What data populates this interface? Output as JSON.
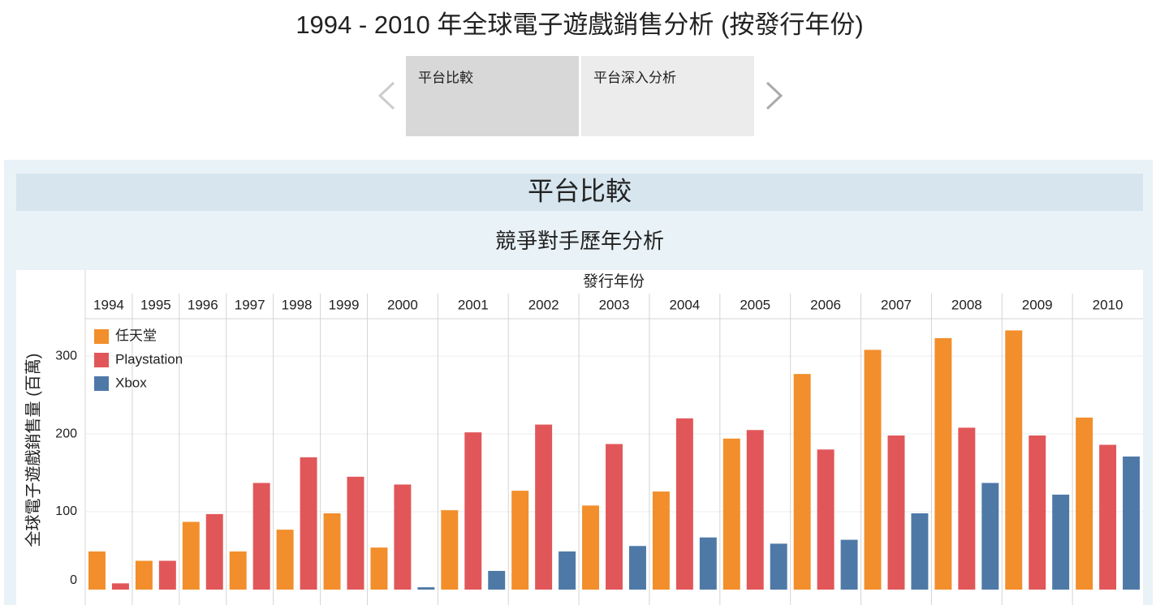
{
  "header": {
    "title": "1994 - 2010 年全球電子遊戲銷售分析 (按發行年份)",
    "tabs": [
      "平台比較",
      "平台深入分析"
    ]
  },
  "section": {
    "title": "平台比較"
  },
  "chart_data": {
    "type": "bar",
    "title": "競爭對手歷年分析",
    "x_label": "發行年份",
    "y_label": "全球電子遊戲銷售量 (百萬)",
    "categories": [
      "1994",
      "1995",
      "1996",
      "1997",
      "1998",
      "1999",
      "2000",
      "2001",
      "2002",
      "2003",
      "2004",
      "2005",
      "2006",
      "2007",
      "2008",
      "2009",
      "2010"
    ],
    "series": [
      {
        "name": "任天堂",
        "color": "#f28e2b",
        "values": [
          49,
          37,
          87,
          49,
          77,
          98,
          54,
          102,
          127,
          108,
          126,
          194,
          277,
          308,
          323,
          333,
          221
        ]
      },
      {
        "name": "Playstation",
        "color": "#e15759",
        "values": [
          8,
          37,
          97,
          137,
          170,
          145,
          135,
          202,
          212,
          187,
          220,
          205,
          180,
          198,
          208,
          198,
          186
        ]
      },
      {
        "name": "Xbox",
        "color": "#4e79a7",
        "values": [
          null,
          null,
          null,
          null,
          null,
          null,
          3,
          24,
          49,
          56,
          67,
          59,
          64,
          98,
          137,
          122,
          171
        ]
      }
    ],
    "ylim": [
      0,
      348
    ],
    "yticks": [
      0,
      100,
      200,
      300
    ],
    "grid": true,
    "legend": "top-left"
  }
}
